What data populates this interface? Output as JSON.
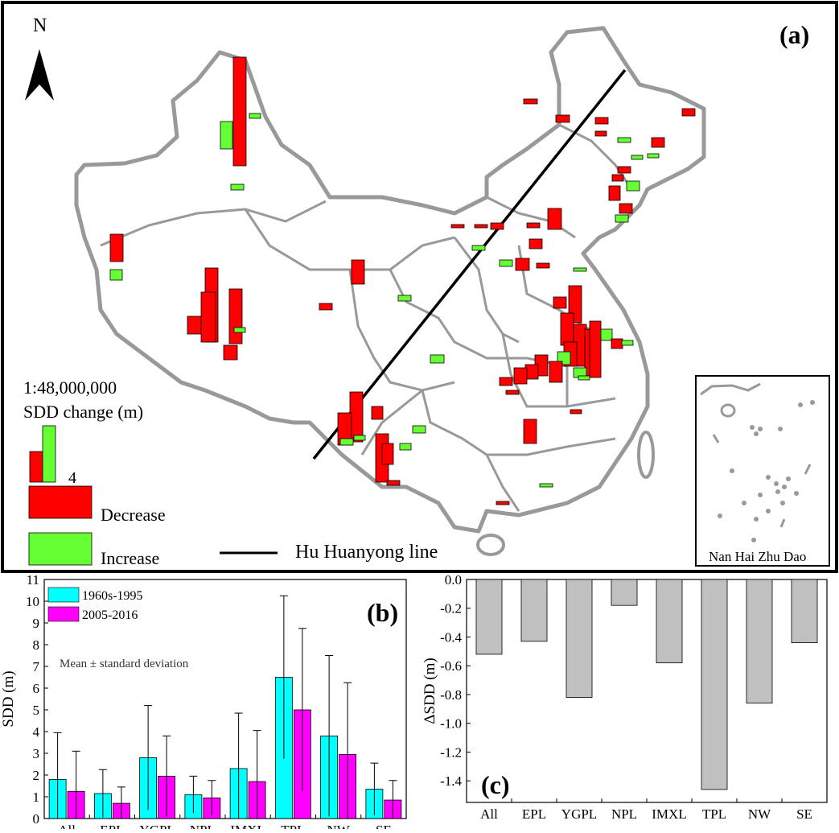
{
  "map": {
    "north_label": "N",
    "panel_label": "(a)",
    "scale": "1:48,000,000",
    "legend_title": "SDD change (m)",
    "legend_value": "4",
    "legend_decrease": "Decrease",
    "legend_increase": "Increase",
    "line_label": "Hu Huanyong line",
    "inset_label": "Nan Hai Zhu Dao",
    "colors": {
      "decrease": "#ff0000",
      "increase": "#66ff33",
      "border": "#999999"
    }
  },
  "chart_data": [
    {
      "type": "bar",
      "panel_label": "(b)",
      "title": "",
      "xlabel": "",
      "ylabel": "SDD (m)",
      "ylim": [
        0,
        11
      ],
      "yticks": [
        "0",
        "1",
        "2",
        "3",
        "4",
        "5",
        "6",
        "7",
        "8",
        "9",
        "10",
        "11"
      ],
      "categories": [
        "All",
        "EPL",
        "YGPL",
        "NPL",
        "IMXL",
        "TPL",
        "NW",
        "SE"
      ],
      "annotation": "Mean ± standard deviation",
      "series": [
        {
          "name": "1960s-1995",
          "color": "#00ffff",
          "values": [
            1.8,
            1.15,
            2.8,
            1.1,
            2.3,
            6.5,
            3.8,
            1.35
          ],
          "errors": [
            2.15,
            1.1,
            2.4,
            0.85,
            2.55,
            3.75,
            3.7,
            1.2
          ]
        },
        {
          "name": "2005-2016",
          "color": "#ff00ff",
          "values": [
            1.25,
            0.7,
            1.95,
            0.95,
            1.7,
            5.0,
            2.95,
            0.85
          ],
          "errors": [
            1.85,
            0.75,
            1.85,
            0.8,
            2.35,
            3.75,
            3.3,
            0.9
          ]
        }
      ]
    },
    {
      "type": "bar",
      "panel_label": "(c)",
      "title": "",
      "xlabel": "",
      "ylabel": "ΔSDD (m)",
      "ylim": [
        -1.55,
        0
      ],
      "yticks": [
        "0.0",
        "-0.2",
        "-0.4",
        "-0.6",
        "-0.8",
        "-1.0",
        "-1.2",
        "-1.4"
      ],
      "categories": [
        "All",
        "EPL",
        "YGPL",
        "NPL",
        "IMXL",
        "TPL",
        "NW",
        "SE"
      ],
      "values": [
        -0.52,
        -0.43,
        -0.82,
        -0.18,
        -0.58,
        -1.46,
        -0.86,
        -0.44
      ],
      "color": "#c0c0c0"
    }
  ]
}
